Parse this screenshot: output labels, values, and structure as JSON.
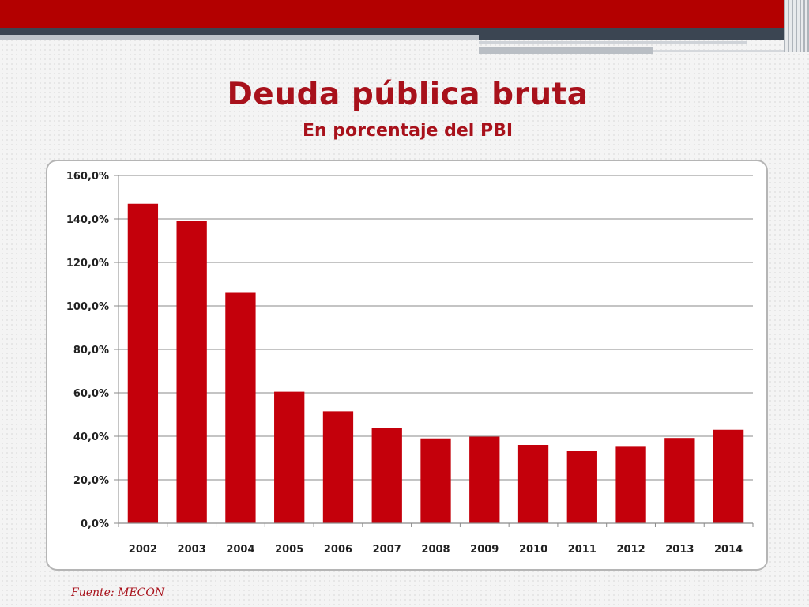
{
  "slide": {
    "title": "Deuda pública bruta",
    "subtitle": "En porcentaje del PBI",
    "source": "Fuente: MECON"
  },
  "colors": {
    "accent": "#a8111b",
    "bar": "#c4000b",
    "band": "#b30000",
    "dark_band": "#3b4552"
  },
  "chart_data": {
    "type": "bar",
    "title": "",
    "xlabel": "",
    "ylabel": "",
    "categories": [
      "2002",
      "2003",
      "2004",
      "2005",
      "2006",
      "2007",
      "2008",
      "2009",
      "2010",
      "2011",
      "2012",
      "2013",
      "2014"
    ],
    "values": [
      147.0,
      139.0,
      106.0,
      60.5,
      51.5,
      44.0,
      39.0,
      39.8,
      36.0,
      33.3,
      35.5,
      39.2,
      43.0
    ],
    "ylim": [
      0,
      160
    ],
    "yticks": [
      0,
      20,
      40,
      60,
      80,
      100,
      120,
      140,
      160
    ],
    "ytick_labels": [
      "0,0%",
      "20,0%",
      "40,0%",
      "60,0%",
      "80,0%",
      "100,0%",
      "120,0%",
      "140,0%",
      "160,0%"
    ],
    "grid": true,
    "legend": "none"
  }
}
